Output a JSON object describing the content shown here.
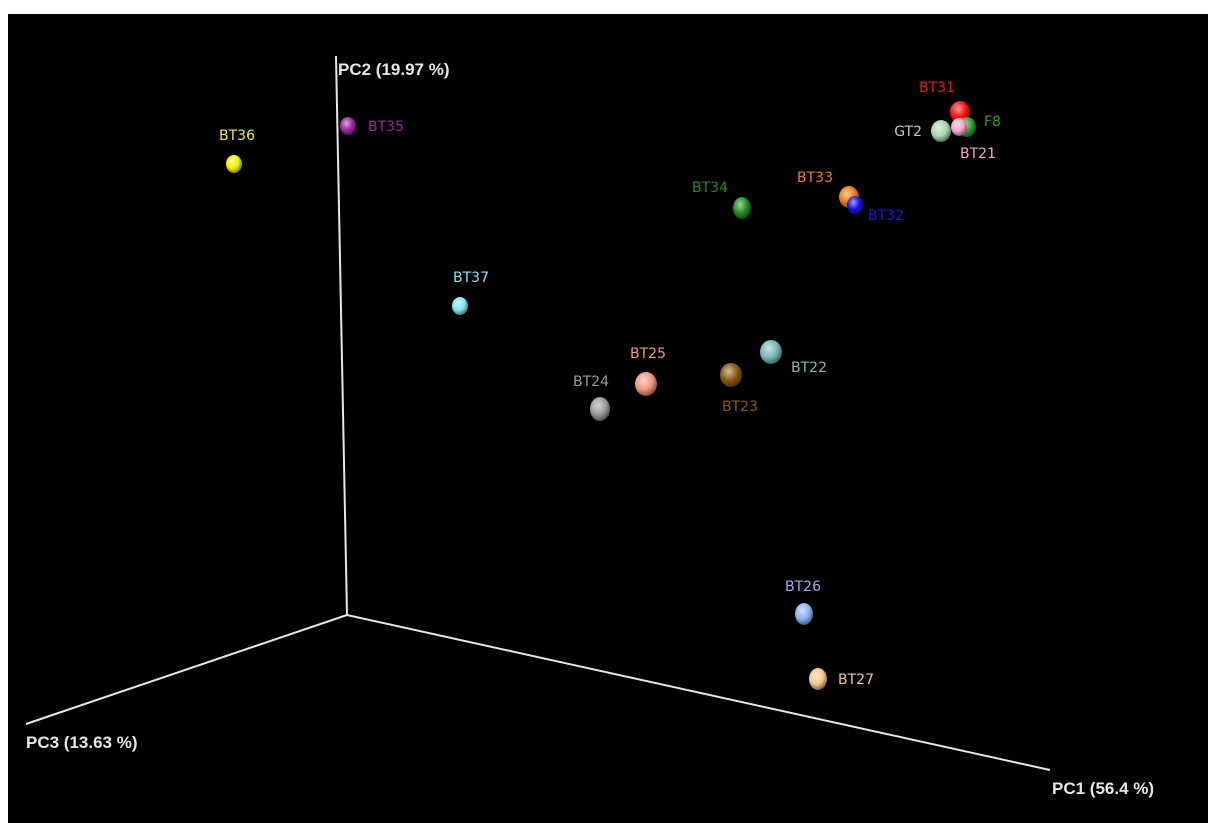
{
  "chart_data": {
    "type": "scatter",
    "dimensions": 3,
    "axes": {
      "x": {
        "label": "PC1 (56.4 %)"
      },
      "y": {
        "label": "PC2 (19.97 %)"
      },
      "z": {
        "label": "PC3 (13.63 %)"
      }
    },
    "grid": false,
    "legend": "none",
    "background": "#000000",
    "points": [
      {
        "name": "BT36",
        "color": "#f2f200",
        "label_side": "above"
      },
      {
        "name": "BT35",
        "color": "#9a2aa0",
        "label_side": "right"
      },
      {
        "name": "BT37",
        "color": "#7fe6f2",
        "label_side": "above"
      },
      {
        "name": "BT34",
        "color": "#1f8f1f",
        "label_side": "above"
      },
      {
        "name": "BT33",
        "color": "#f07d10",
        "label_side": "above"
      },
      {
        "name": "BT32",
        "color": "#1414e6",
        "label_side": "below-right"
      },
      {
        "name": "BT31",
        "color": "#ff1010",
        "label_side": "above"
      },
      {
        "name": "F8",
        "color": "#2aa02a",
        "label_side": "right"
      },
      {
        "name": "GT2",
        "color": "#a8d8b0",
        "label_side": "left"
      },
      {
        "name": "BT21",
        "color": "#f4a6c8",
        "label_side": "below"
      },
      {
        "name": "BT25",
        "color": "#f59680",
        "label_side": "above"
      },
      {
        "name": "BT24",
        "color": "#9a9a9a",
        "label_side": "above"
      },
      {
        "name": "BT23",
        "color": "#8a5a10",
        "label_side": "below"
      },
      {
        "name": "BT22",
        "color": "#7ab8b8",
        "label_side": "right"
      },
      {
        "name": "BT26",
        "color": "#8cb4f0",
        "label_side": "above"
      },
      {
        "name": "BT27",
        "color": "#f5c78a",
        "label_side": "right"
      }
    ]
  }
}
